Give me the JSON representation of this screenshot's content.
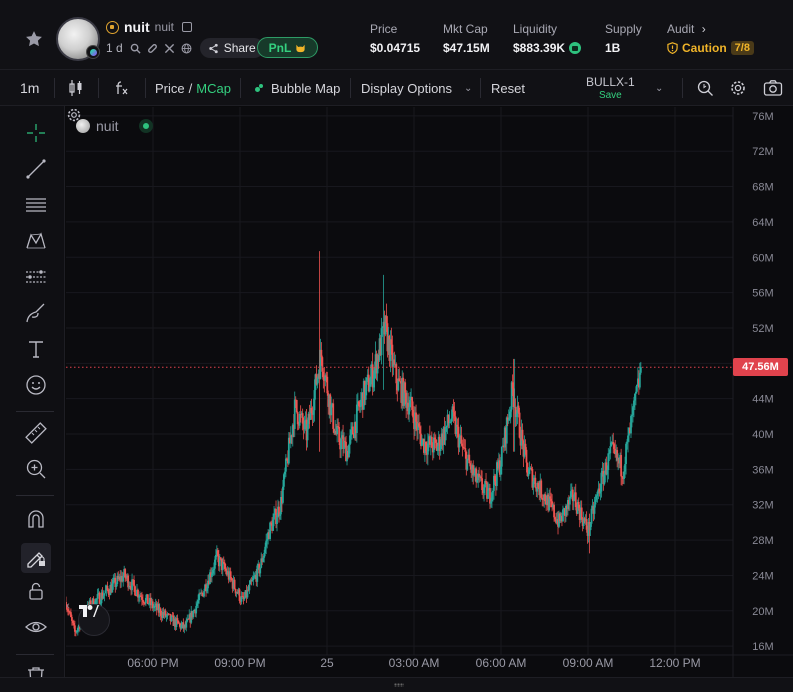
{
  "token": {
    "name": "nuit",
    "symbol": "nuit",
    "age": "1 d",
    "share_label": "Share",
    "pnl_label": "PnL"
  },
  "stats": {
    "price": {
      "label": "Price",
      "value": "$0.04715"
    },
    "mcap": {
      "label": "Mkt Cap",
      "value": "$47.15M"
    },
    "liquidity": {
      "label": "Liquidity",
      "value": "$883.39K"
    },
    "supply": {
      "label": "Supply",
      "value": "1B"
    },
    "audit": {
      "label": "Audit",
      "status": "Caution",
      "count": "7/8"
    }
  },
  "toolbar": {
    "interval": "1m",
    "price_label": "Price",
    "separator": "/",
    "mcap_label": "MCap",
    "bubble_map": "Bubble Map",
    "display_options": "Display Options",
    "reset": "Reset",
    "layout_name": "BULLX-1",
    "layout_save": "Save"
  },
  "colors": {
    "up": "#26a69a",
    "down": "#ef5350",
    "accent_green": "#34d07f",
    "caution": "#f0b429",
    "price_line": "#e0434d"
  },
  "chart_data": {
    "type": "candlestick",
    "legend_name": "nuit",
    "y_unit": "market cap (USD, millions)",
    "y_ticks": [
      "76M",
      "72M",
      "68M",
      "64M",
      "60M",
      "56M",
      "52M",
      "48M",
      "44M",
      "40M",
      "36M",
      "32M",
      "28M",
      "24M",
      "20M",
      "16M"
    ],
    "y_tick_values": [
      76,
      72,
      68,
      64,
      60,
      56,
      52,
      48,
      44,
      40,
      36,
      32,
      28,
      24,
      20,
      16
    ],
    "ylim": [
      15,
      77
    ],
    "x_ticks": [
      "06:00 PM",
      "09:00 PM",
      "25",
      "03:00 AM",
      "06:00 AM",
      "09:00 AM",
      "12:00 PM"
    ],
    "x_tick_hours": [
      18,
      21,
      24,
      27,
      30,
      33,
      36
    ],
    "xlim_hours": [
      15.0,
      38.0
    ],
    "last_value": 47.56,
    "last_value_label": "47.56M",
    "trend_anchors": [
      {
        "h": 15.0,
        "v": 21.0
      },
      {
        "h": 15.3,
        "v": 17.5
      },
      {
        "h": 15.8,
        "v": 20.5
      },
      {
        "h": 16.5,
        "v": 22.5
      },
      {
        "h": 17.0,
        "v": 24.0
      },
      {
        "h": 17.5,
        "v": 22.0
      },
      {
        "h": 18.0,
        "v": 20.5
      },
      {
        "h": 18.6,
        "v": 19.0
      },
      {
        "h": 19.1,
        "v": 18.0
      },
      {
        "h": 19.7,
        "v": 22.0
      },
      {
        "h": 20.2,
        "v": 26.0
      },
      {
        "h": 20.6,
        "v": 24.0
      },
      {
        "h": 21.1,
        "v": 21.0
      },
      {
        "h": 21.7,
        "v": 25.0
      },
      {
        "h": 22.0,
        "v": 29.0
      },
      {
        "h": 22.4,
        "v": 32.0
      },
      {
        "h": 22.9,
        "v": 43.0
      },
      {
        "h": 23.3,
        "v": 40.0
      },
      {
        "h": 23.8,
        "v": 49.0
      },
      {
        "h": 24.3,
        "v": 40.0
      },
      {
        "h": 24.7,
        "v": 38.0
      },
      {
        "h": 25.2,
        "v": 44.0
      },
      {
        "h": 25.6,
        "v": 47.0
      },
      {
        "h": 26.0,
        "v": 52.0
      },
      {
        "h": 26.4,
        "v": 46.0
      },
      {
        "h": 26.9,
        "v": 43.0
      },
      {
        "h": 27.3,
        "v": 39.0
      },
      {
        "h": 27.8,
        "v": 38.5
      },
      {
        "h": 28.3,
        "v": 42.0
      },
      {
        "h": 28.7,
        "v": 38.0
      },
      {
        "h": 29.1,
        "v": 35.0
      },
      {
        "h": 29.6,
        "v": 33.0
      },
      {
        "h": 30.0,
        "v": 37.0
      },
      {
        "h": 30.4,
        "v": 45.0
      },
      {
        "h": 30.9,
        "v": 36.0
      },
      {
        "h": 31.5,
        "v": 33.0
      },
      {
        "h": 32.0,
        "v": 30.0
      },
      {
        "h": 32.5,
        "v": 33.0
      },
      {
        "h": 33.0,
        "v": 29.0
      },
      {
        "h": 33.4,
        "v": 34.0
      },
      {
        "h": 33.8,
        "v": 38.0
      },
      {
        "h": 34.2,
        "v": 36.0
      },
      {
        "h": 34.6,
        "v": 43.0
      },
      {
        "h": 34.85,
        "v": 47.56
      }
    ],
    "spikes": [
      {
        "h": 23.75,
        "high": 60.7,
        "low": 38.0
      },
      {
        "h": 25.95,
        "high": 58.0,
        "low": 45.0
      },
      {
        "h": 30.45,
        "high": 48.5,
        "low": 38.0
      },
      {
        "h": 33.05,
        "high": 31.0,
        "low": 26.5
      },
      {
        "h": 34.88,
        "high": 50.5,
        "low": 43.0
      }
    ]
  }
}
